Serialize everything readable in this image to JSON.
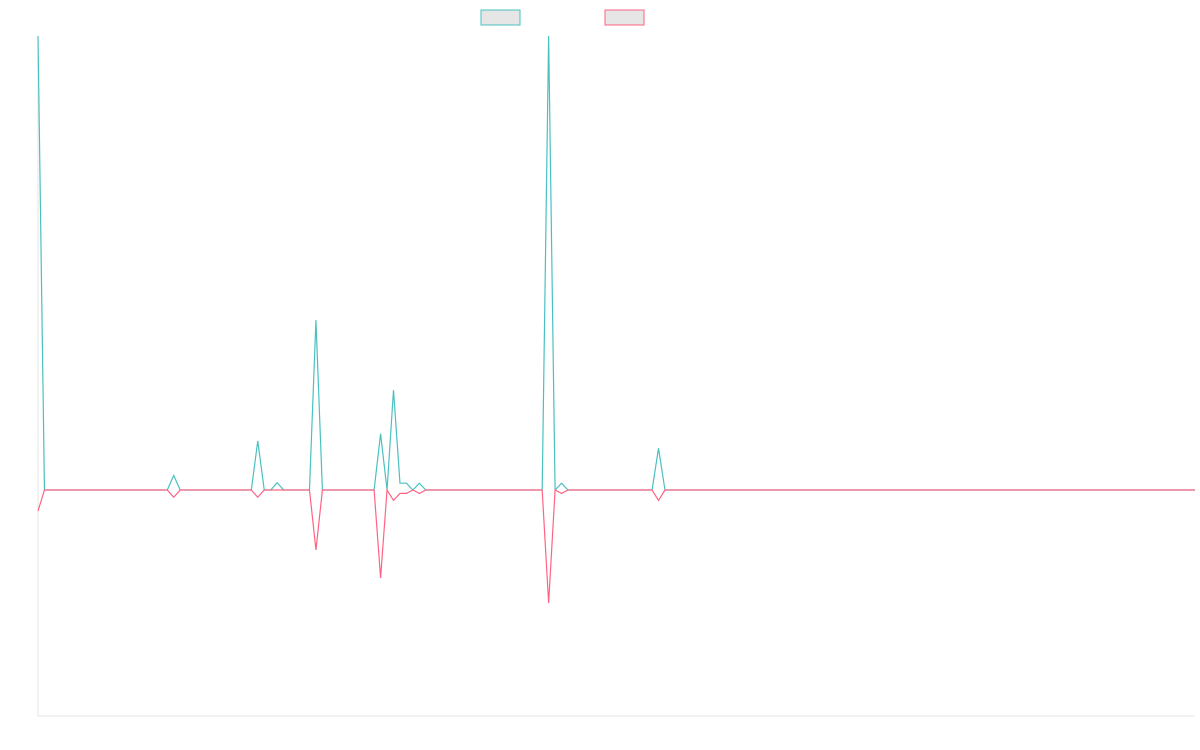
{
  "chart_data": {
    "type": "line",
    "title": "",
    "xlabel": "",
    "ylabel": "",
    "legend_position": "top-center",
    "grid": false,
    "y_range": [
      -1,
      1
    ],
    "x_count": 180,
    "series": [
      {
        "name": "",
        "color": "#4bc0c0",
        "legend_fill": "#e6e6e6",
        "points": [
          {
            "i": 0,
            "v": 1.0
          },
          {
            "i": 21,
            "v": 0.032
          },
          {
            "i": 34,
            "v": 0.108
          },
          {
            "i": 37,
            "v": 0.016
          },
          {
            "i": 43,
            "v": 0.374
          },
          {
            "i": 53,
            "v": 0.124
          },
          {
            "i": 55,
            "v": 0.22
          },
          {
            "i": 56,
            "v": 0.015
          },
          {
            "i": 57,
            "v": 0.015
          },
          {
            "i": 59,
            "v": 0.015
          },
          {
            "i": 79,
            "v": 1.0
          },
          {
            "i": 81,
            "v": 0.015
          },
          {
            "i": 96,
            "v": 0.092
          }
        ]
      },
      {
        "name": "",
        "color": "#ff6384",
        "legend_fill": "#e6e6e6",
        "points": [
          {
            "i": 0,
            "v": -0.093
          },
          {
            "i": 21,
            "v": -0.032
          },
          {
            "i": 34,
            "v": -0.032
          },
          {
            "i": 43,
            "v": -0.265
          },
          {
            "i": 53,
            "v": -0.389
          },
          {
            "i": 55,
            "v": -0.046
          },
          {
            "i": 56,
            "v": -0.015
          },
          {
            "i": 57,
            "v": -0.015
          },
          {
            "i": 59,
            "v": -0.015
          },
          {
            "i": 79,
            "v": -0.5
          },
          {
            "i": 81,
            "v": -0.015
          },
          {
            "i": 96,
            "v": -0.046
          }
        ]
      }
    ]
  }
}
